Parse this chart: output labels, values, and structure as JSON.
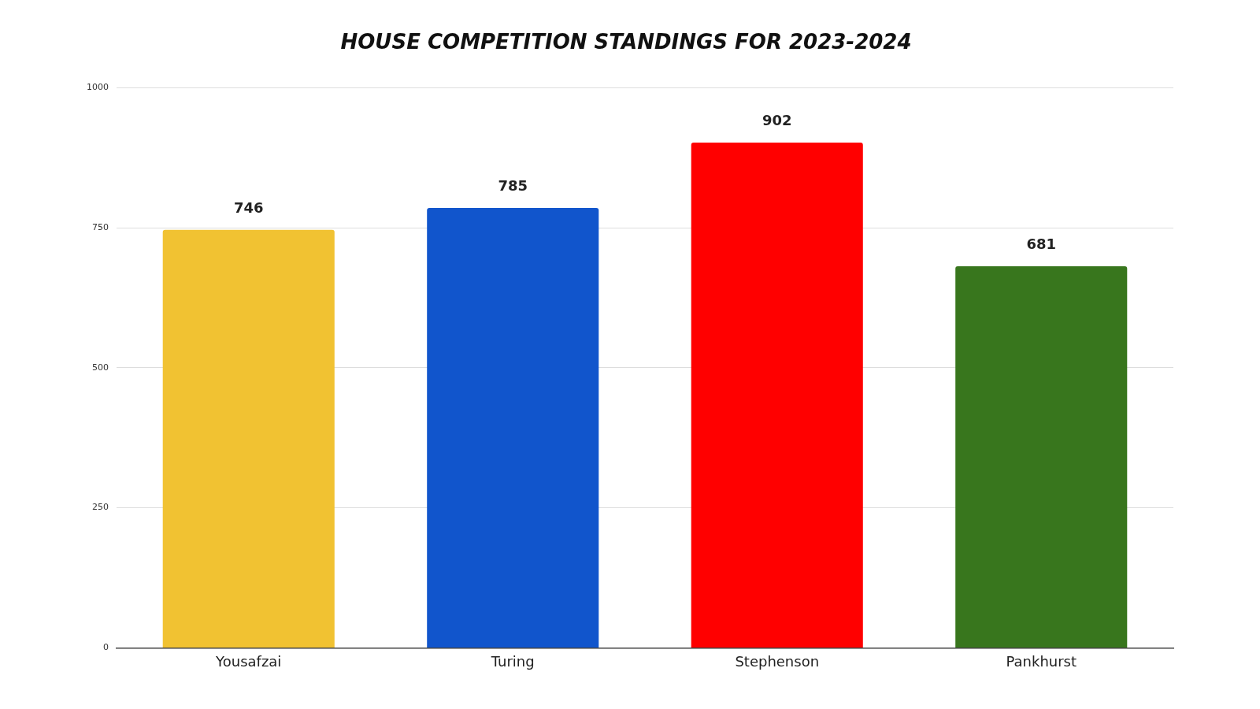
{
  "chart_data": {
    "type": "bar",
    "title": "HOUSE COMPETITION STANDINGS FOR 2023-2024",
    "categories": [
      "Yousafzai",
      "Turing",
      "Stephenson",
      "Pankhurst"
    ],
    "values": [
      746,
      785,
      902,
      681
    ],
    "colors": [
      "#f1c232",
      "#1155cc",
      "#ff0000",
      "#38761d"
    ],
    "ylim": [
      0,
      1000
    ],
    "yticks": [
      0,
      250,
      500,
      750,
      1000
    ],
    "grid": "y",
    "data_labels": true
  }
}
